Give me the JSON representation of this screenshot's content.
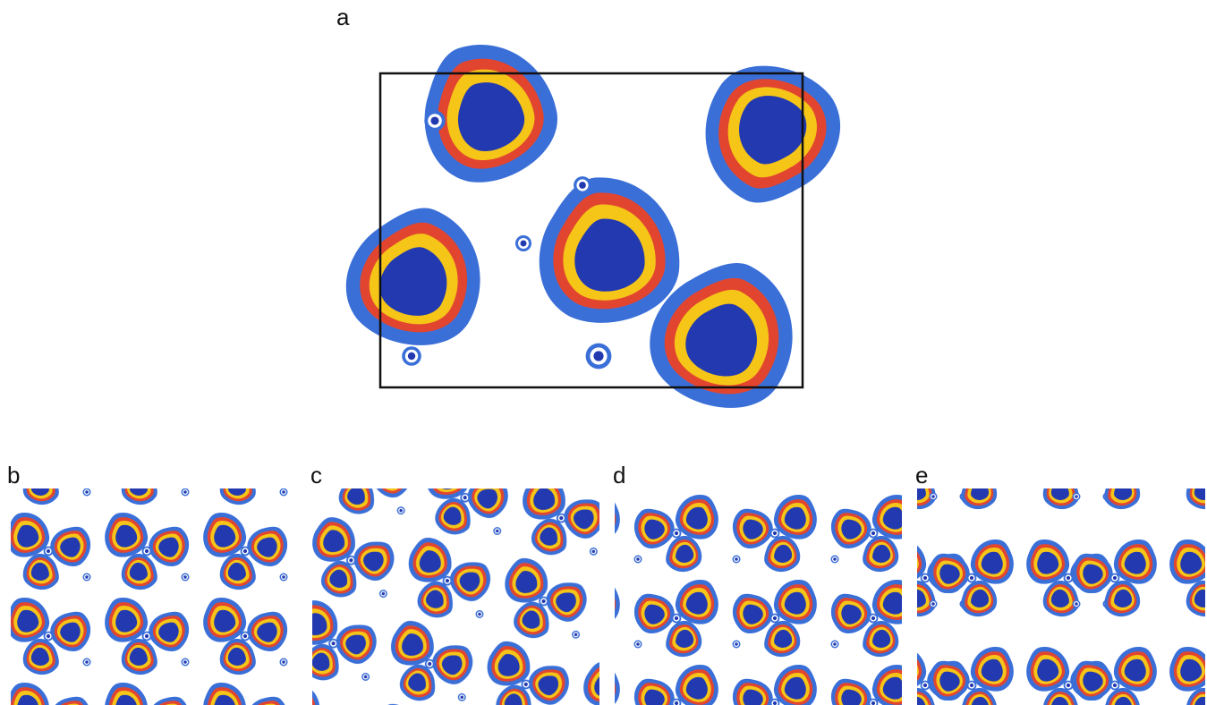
{
  "panels": {
    "a": "a",
    "b": "b",
    "c": "c",
    "d": "d",
    "e": "e"
  }
}
